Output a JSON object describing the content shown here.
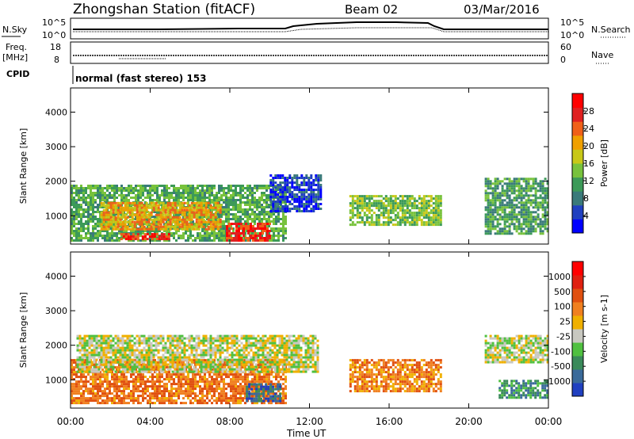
{
  "header": {
    "station": "Zhongshan Station (fitACF)",
    "beam": "Beam 02",
    "date": "03/Mar/2016"
  },
  "top_panels": {
    "nsky_label": "N.Sky",
    "nsky_ticks": [
      "10^5",
      "10^0"
    ],
    "nsearch_label": "N.Search",
    "freq_label_1": "Freq.",
    "freq_label_2": "[MHz]",
    "freq_ticks": [
      "18",
      "8"
    ],
    "nave_label": "Nave",
    "nave_ticks": [
      "60",
      "0"
    ],
    "cpid_label": "CPID",
    "cpid_value": "normal (fast stereo) 153"
  },
  "chart_data": [
    {
      "type": "heatmap",
      "name": "Power",
      "ylabel": "Slant Range [km]",
      "xlabel": "",
      "x_ticks": [
        "00:00",
        "04:00",
        "08:00",
        "12:00",
        "16:00",
        "20:00",
        "00:00"
      ],
      "y_ticks": [
        1000,
        2000,
        3000,
        4000
      ],
      "ylim": [
        180,
        4700
      ],
      "colorbar": {
        "label": "Power [dB]",
        "ticks": [
          "4",
          "8",
          "12",
          "16",
          "20",
          "24",
          "28"
        ],
        "colors": [
          "#0000ff",
          "#2040c0",
          "#3a7a7a",
          "#3c9a58",
          "#78c23c",
          "#c8c818",
          "#f0a000",
          "#f06018",
          "#e02020",
          "#ff0000"
        ]
      },
      "regions": [
        {
          "t0": 0.0,
          "t1": 10.8,
          "r0": 300,
          "r1": 1900,
          "level": 3
        },
        {
          "t0": 1.5,
          "t1": 7.5,
          "r0": 600,
          "r1": 1400,
          "level": 6
        },
        {
          "t0": 7.8,
          "t1": 10.0,
          "r0": 300,
          "r1": 800,
          "level": 8
        },
        {
          "t0": 2.5,
          "t1": 5.0,
          "r0": 300,
          "r1": 500,
          "level": 8
        },
        {
          "t0": 10.0,
          "t1": 12.6,
          "r0": 1100,
          "r1": 2200,
          "level": 1
        },
        {
          "t0": 14.0,
          "t1": 18.6,
          "r0": 750,
          "r1": 1600,
          "level": 4
        },
        {
          "t0": 20.8,
          "t1": 24.0,
          "r0": 500,
          "r1": 2100,
          "level": 3
        }
      ]
    },
    {
      "type": "heatmap",
      "name": "Velocity",
      "ylabel": "Slant Range [km]",
      "xlabel": "Time UT",
      "x_ticks": [
        "00:00",
        "04:00",
        "08:00",
        "12:00",
        "16:00",
        "20:00",
        "00:00"
      ],
      "y_ticks": [
        1000,
        2000,
        3000,
        4000
      ],
      "ylim": [
        180,
        4700
      ],
      "colorbar": {
        "label": "Velocity [m s-1]",
        "ticks": [
          "1000",
          "500",
          "100",
          "25",
          "-25",
          "-100",
          "-500",
          "-1000"
        ],
        "colors": [
          "#2040c0",
          "#3a6a9a",
          "#3a8a5a",
          "#50c040",
          "#c8c8c0",
          "#f0b000",
          "#f08020",
          "#e05010",
          "#e02010",
          "#ff0000"
        ]
      },
      "regions": [
        {
          "t0": 0.0,
          "t1": 10.8,
          "r0": 300,
          "r1": 1600,
          "level": 6
        },
        {
          "t0": 0.3,
          "t1": 12.4,
          "r0": 1200,
          "r1": 2300,
          "level": 4
        },
        {
          "t0": 8.8,
          "t1": 10.5,
          "r0": 400,
          "r1": 900,
          "level": 1
        },
        {
          "t0": 14.0,
          "t1": 18.6,
          "r0": 700,
          "r1": 1600,
          "level": 6
        },
        {
          "t0": 20.8,
          "t1": 24.0,
          "r0": 1500,
          "r1": 2300,
          "level": 4
        },
        {
          "t0": 21.5,
          "t1": 24.0,
          "r0": 500,
          "r1": 1000,
          "level": 2
        }
      ]
    }
  ]
}
